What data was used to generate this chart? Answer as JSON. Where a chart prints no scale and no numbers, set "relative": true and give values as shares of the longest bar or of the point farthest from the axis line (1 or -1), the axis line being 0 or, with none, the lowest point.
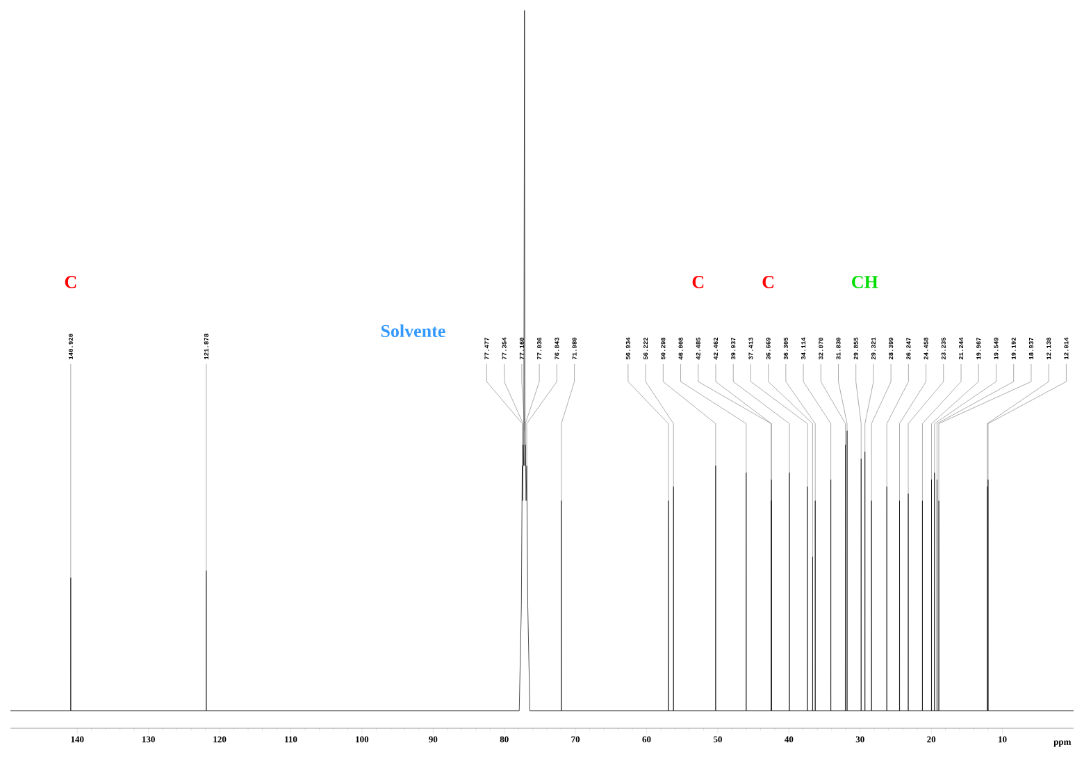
{
  "chart_data": {
    "type": "line",
    "relative": true,
    "xlabel": "ppm",
    "xlim": [
      149.4,
      0
    ],
    "xticks": [
      140,
      130,
      120,
      110,
      100,
      90,
      80,
      70,
      60,
      50,
      40,
      30,
      20,
      10
    ],
    "series": [
      {
        "color": "#000000",
        "x": [
          149.4,
          140.93,
          140.92,
          140.91,
          121.888,
          121.878,
          121.868,
          77.9,
          77.6,
          77.477,
          77.42,
          77.354,
          77.26,
          77.16,
          77.1,
          77.036,
          76.94,
          76.843,
          76.7,
          76.4,
          71.99,
          71.98,
          71.97,
          56.944,
          56.934,
          56.924,
          56.232,
          56.222,
          56.212,
          50.308,
          50.298,
          50.288,
          46.018,
          46.008,
          45.998,
          42.495,
          42.485,
          42.475,
          42.472,
          42.462,
          42.452,
          39.947,
          39.937,
          39.927,
          37.423,
          37.413,
          37.403,
          36.679,
          36.669,
          36.659,
          36.315,
          36.305,
          36.295,
          34.124,
          34.114,
          34.104,
          32.08,
          32.07,
          32.06,
          31.84,
          31.83,
          31.82,
          29.865,
          29.855,
          29.845,
          29.331,
          29.321,
          29.311,
          28.409,
          28.399,
          28.389,
          26.257,
          26.247,
          26.237,
          24.468,
          24.458,
          24.448,
          23.245,
          23.235,
          23.225,
          21.254,
          21.244,
          21.234,
          19.977,
          19.967,
          19.957,
          19.559,
          19.549,
          19.539,
          19.202,
          19.192,
          19.182,
          18.947,
          18.937,
          18.927,
          12.148,
          12.138,
          12.128,
          12.024,
          12.014,
          12.004,
          0
        ],
        "values": [
          0,
          0,
          0.19,
          0,
          0,
          0.2,
          0,
          0,
          0.15,
          0.35,
          0.3,
          0.38,
          0.35,
          1,
          0.35,
          0.38,
          0.3,
          0.35,
          0.15,
          0,
          0,
          0.3,
          0,
          0,
          0.3,
          0,
          0,
          0.32,
          0,
          0,
          0.35,
          0,
          0,
          0.34,
          0,
          0,
          0.3,
          0,
          0,
          0.33,
          0,
          0,
          0.34,
          0,
          0,
          0.32,
          0,
          0,
          0.22,
          0,
          0,
          0.3,
          0,
          0,
          0.33,
          0,
          0,
          0.38,
          0,
          0,
          0.4,
          0,
          0,
          0.36,
          0,
          0,
          0.37,
          0,
          0,
          0.3,
          0,
          0,
          0.32,
          0,
          0,
          0.3,
          0,
          0,
          0.31,
          0,
          0,
          0.3,
          0,
          0,
          0.33,
          0,
          0,
          0.34,
          0,
          0,
          0.33,
          0,
          0,
          0.3,
          0,
          0,
          0.32,
          0,
          0,
          0.33,
          0,
          0
        ]
      }
    ],
    "annotations": [
      {
        "text": "140.920",
        "x": 140.92,
        "y": 0.19
      },
      {
        "text": "121.878",
        "x": 121.878,
        "y": 0.2
      },
      {
        "text": "77.477",
        "x": 77.477,
        "y": 0.35
      },
      {
        "text": "77.354",
        "x": 77.354,
        "y": 0.38
      },
      {
        "text": "77.160",
        "x": 77.16,
        "y": 0.4
      },
      {
        "text": "77.036",
        "x": 77.036,
        "y": 0.38
      },
      {
        "text": "76.843",
        "x": 76.843,
        "y": 0.35
      },
      {
        "text": "71.980",
        "x": 71.98,
        "y": 0.3
      },
      {
        "text": "56.934",
        "x": 56.934,
        "y": 0.3
      },
      {
        "text": "56.222",
        "x": 56.222,
        "y": 0.32
      },
      {
        "text": "50.298",
        "x": 50.298,
        "y": 0.35
      },
      {
        "text": "46.008",
        "x": 46.008,
        "y": 0.34
      },
      {
        "text": "42.485",
        "x": 42.485,
        "y": 0.3
      },
      {
        "text": "42.462",
        "x": 42.462,
        "y": 0.33
      },
      {
        "text": "39.937",
        "x": 39.937,
        "y": 0.34
      },
      {
        "text": "37.413",
        "x": 37.413,
        "y": 0.32
      },
      {
        "text": "36.669",
        "x": 36.669,
        "y": 0.22
      },
      {
        "text": "36.305",
        "x": 36.305,
        "y": 0.3
      },
      {
        "text": "34.114",
        "x": 34.114,
        "y": 0.33
      },
      {
        "text": "32.070",
        "x": 32.07,
        "y": 0.38
      },
      {
        "text": "31.830",
        "x": 31.83,
        "y": 0.4
      },
      {
        "text": "29.855",
        "x": 29.855,
        "y": 0.36
      },
      {
        "text": "29.321",
        "x": 29.321,
        "y": 0.37
      },
      {
        "text": "28.399",
        "x": 28.399,
        "y": 0.3
      },
      {
        "text": "26.247",
        "x": 26.247,
        "y": 0.32
      },
      {
        "text": "24.458",
        "x": 24.458,
        "y": 0.3
      },
      {
        "text": "23.235",
        "x": 23.235,
        "y": 0.31
      },
      {
        "text": "21.244",
        "x": 21.244,
        "y": 0.3
      },
      {
        "text": "19.967",
        "x": 19.967,
        "y": 0.33
      },
      {
        "text": "19.549",
        "x": 19.549,
        "y": 0.34
      },
      {
        "text": "19.192",
        "x": 19.192,
        "y": 0.33
      },
      {
        "text": "18.937",
        "x": 18.937,
        "y": 0.3
      },
      {
        "text": "12.138",
        "x": 12.138,
        "y": 0.32
      },
      {
        "text": "12.014",
        "x": 12.014,
        "y": 0.33
      },
      "Solvente",
      "C",
      "C",
      "C",
      "CH"
    ]
  }
}
